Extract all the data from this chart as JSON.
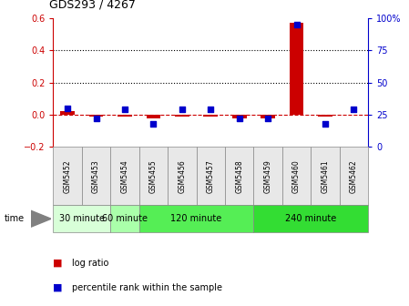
{
  "title": "GDS293 / 4267",
  "samples": [
    "GSM5452",
    "GSM5453",
    "GSM5454",
    "GSM5455",
    "GSM5456",
    "GSM5457",
    "GSM5458",
    "GSM5459",
    "GSM5460",
    "GSM5461",
    "GSM5462"
  ],
  "log_ratio": [
    0.02,
    -0.01,
    -0.01,
    -0.02,
    -0.01,
    -0.01,
    -0.02,
    -0.02,
    0.57,
    -0.01,
    0.0
  ],
  "percentile": [
    30,
    22,
    29,
    18,
    29,
    29,
    22,
    22,
    95,
    18,
    29
  ],
  "ylim_left": [
    -0.2,
    0.6
  ],
  "ylim_right": [
    0,
    100
  ],
  "yticks_left": [
    -0.2,
    0.0,
    0.2,
    0.4,
    0.6
  ],
  "yticks_right": [
    0,
    25,
    50,
    75,
    100
  ],
  "ytick_labels_right": [
    "0",
    "25",
    "50",
    "75",
    "100%"
  ],
  "hlines": [
    0.2,
    0.4
  ],
  "group_spans": [
    {
      "label": "30 minute",
      "s": 0,
      "e": 1,
      "color": "#d8ffd8"
    },
    {
      "label": "60 minute",
      "s": 2,
      "e": 2,
      "color": "#aaffaa"
    },
    {
      "label": "120 minute",
      "s": 3,
      "e": 6,
      "color": "#55ee55"
    },
    {
      "label": "240 minute",
      "s": 7,
      "e": 10,
      "color": "#33dd33"
    }
  ],
  "bar_color": "#cc0000",
  "dot_color": "#0000cc",
  "zero_line_color": "#cc0000",
  "bg_color": "#e8e8e8",
  "legend_log_ratio_color": "#cc0000",
  "legend_percentile_color": "#0000cc"
}
